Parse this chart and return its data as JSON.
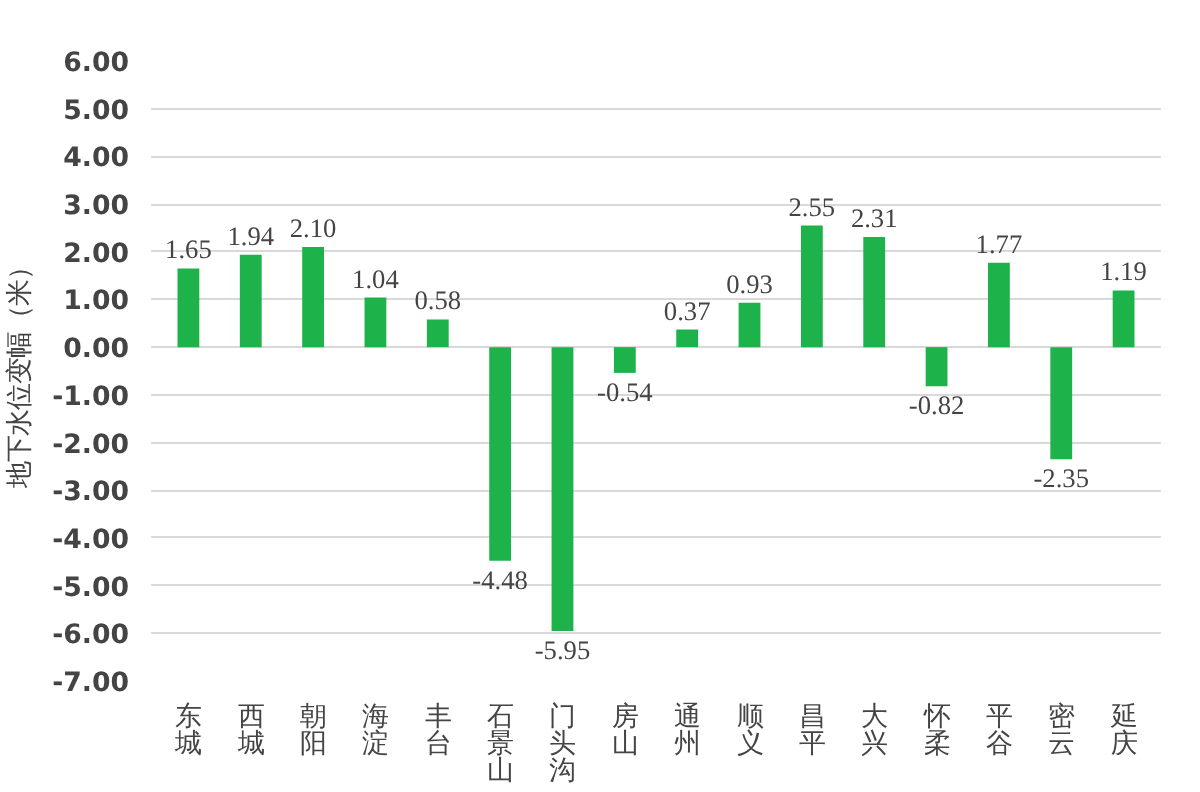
{
  "chart_data": {
    "type": "bar",
    "ylabel": "地下水位变幅（米）",
    "categories": [
      "东城",
      "西城",
      "朝阳",
      "海淀",
      "丰台",
      "石景山",
      "门头沟",
      "房山",
      "通州",
      "顺义",
      "昌平",
      "大兴",
      "怀柔",
      "平谷",
      "密云",
      "延庆"
    ],
    "values": [
      1.65,
      1.94,
      2.1,
      1.04,
      0.58,
      -4.48,
      -5.95,
      -0.54,
      0.37,
      0.93,
      2.55,
      2.31,
      -0.82,
      1.77,
      -2.35,
      1.19
    ],
    "value_labels": [
      "1.65",
      "1.94",
      "2.10",
      "1.04",
      "0.58",
      "-4.48",
      "-5.95",
      "-0.54",
      "0.37",
      "0.93",
      "2.55",
      "2.31",
      "-0.82",
      "1.77",
      "-2.35",
      "1.19"
    ],
    "color": "#1db34a",
    "ylim": [
      -7,
      6
    ],
    "yticks": [
      {
        "value": 6,
        "label": "6.00"
      },
      {
        "value": 5,
        "label": "5.00"
      },
      {
        "value": 4,
        "label": "4.00"
      },
      {
        "value": 3,
        "label": "3.00"
      },
      {
        "value": 2,
        "label": "2.00"
      },
      {
        "value": 1,
        "label": "1.00"
      },
      {
        "value": 0,
        "label": "0.00"
      },
      {
        "value": -1,
        "label": "-1.00"
      },
      {
        "value": -2,
        "label": "-2.00"
      },
      {
        "value": -3,
        "label": "-3.00"
      },
      {
        "value": -4,
        "label": "-4.00"
      },
      {
        "value": -5,
        "label": "-5.00"
      },
      {
        "value": -6,
        "label": "-6.00"
      },
      {
        "value": -7,
        "label": "-7.00"
      }
    ],
    "grid": "y"
  }
}
